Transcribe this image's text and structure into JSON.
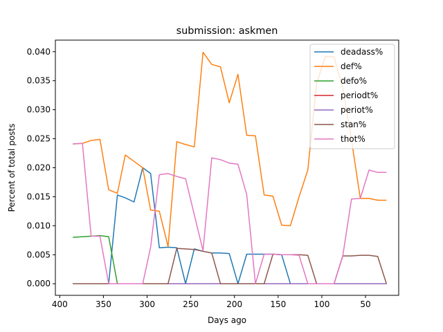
{
  "chart_data": {
    "type": "line",
    "title": "submission: askmen",
    "xlabel": "Days ago",
    "ylabel": "Percent of total posts",
    "xlim": [
      405,
      12
    ],
    "ylim": [
      -0.002,
      0.042
    ],
    "x_inverted": true,
    "grid": false,
    "legend_position": "top-right",
    "x_ticks": [
      400,
      350,
      300,
      250,
      200,
      150,
      100,
      50
    ],
    "x_tick_labels": [
      "400",
      "350",
      "300",
      "250",
      "200",
      "150",
      "100",
      "50"
    ],
    "y_ticks": [
      0.0,
      0.005,
      0.01,
      0.015,
      0.02,
      0.025,
      0.03,
      0.035,
      0.04
    ],
    "y_tick_labels": [
      "0.000",
      "0.005",
      "0.010",
      "0.015",
      "0.020",
      "0.025",
      "0.030",
      "0.035",
      "0.040"
    ],
    "x": [
      385,
      374,
      364,
      354,
      344,
      334,
      325,
      315,
      305,
      296,
      286,
      276,
      266,
      256,
      246,
      236,
      226,
      216,
      206,
      196,
      186,
      176,
      166,
      156,
      146,
      136,
      126,
      116,
      106,
      96,
      86,
      76,
      66,
      56,
      46,
      36,
      26
    ],
    "series": [
      {
        "name": "deadass%",
        "color": "#1f77b4",
        "values": [
          0,
          0,
          0,
          0,
          0,
          0.0153,
          0.0148,
          0.0141,
          0.02,
          0.019,
          0.0062,
          0.0063,
          0.0062,
          0,
          0.006,
          0.0056,
          0.0053,
          0.0053,
          0.0052,
          0,
          0.0051,
          0.0051,
          0.0051,
          0.0051,
          0.005,
          0,
          0,
          0,
          0,
          0,
          0,
          0,
          0,
          0,
          0,
          0,
          0
        ]
      },
      {
        "name": "def%",
        "color": "#ff7f0e",
        "values": [
          0.0241,
          0.0242,
          0.0247,
          0.0249,
          0.0162,
          0.0156,
          0.0222,
          0.0211,
          0.02,
          0.0127,
          0.0125,
          0.0064,
          0.0245,
          0.024,
          0.0236,
          0.0399,
          0.0378,
          0.0374,
          0.0312,
          0.0361,
          0.0256,
          0.0255,
          0.0153,
          0.0151,
          0.0101,
          0.01,
          0.015,
          0.0196,
          0.0345,
          0.0392,
          0.0391,
          0.0338,
          0.0248,
          0.0147,
          0.0147,
          0.0144,
          0.0144
        ]
      },
      {
        "name": "defo%",
        "color": "#2ca02c",
        "values": [
          0.008,
          0.0081,
          0.0082,
          0.0083,
          0.0081,
          0,
          0,
          0,
          0,
          0,
          0,
          0,
          0,
          0,
          0,
          0,
          0,
          0,
          0,
          0,
          0,
          0,
          0,
          0,
          0,
          0,
          0,
          0,
          0,
          0,
          0,
          0,
          0,
          0,
          0,
          0,
          0
        ]
      },
      {
        "name": "periodt%",
        "color": "#d62728",
        "values": [
          0,
          0,
          0,
          0,
          0,
          0,
          0,
          0,
          0,
          0,
          0,
          0,
          0,
          0,
          0,
          0,
          0,
          0,
          0,
          0,
          0,
          0,
          0,
          0,
          0,
          0,
          0,
          0,
          0,
          0,
          0,
          0,
          0,
          0,
          0,
          0,
          0
        ]
      },
      {
        "name": "periot%",
        "color": "#9467bd",
        "values": [
          0,
          0,
          0,
          0,
          0,
          0,
          0,
          0,
          0,
          0,
          0,
          0,
          0,
          0,
          0,
          0,
          0,
          0,
          0,
          0,
          0,
          0,
          0,
          0,
          0,
          0,
          0,
          0,
          0,
          0,
          0,
          0,
          0,
          0,
          0,
          0,
          0
        ]
      },
      {
        "name": "stan%",
        "color": "#8c564b",
        "values": [
          0,
          0,
          0,
          0,
          0,
          0,
          0,
          0,
          0,
          0,
          0,
          0,
          0.0061,
          0.006,
          0.0059,
          0.0056,
          0.0053,
          0,
          0,
          0,
          0,
          0,
          0,
          0.0051,
          0.005,
          0.005,
          0.005,
          0.0049,
          0,
          0,
          0,
          0.0048,
          0.0048,
          0.0049,
          0.0049,
          0.0047,
          0
        ]
      },
      {
        "name": "thot%",
        "color": "#e377c2",
        "values": [
          0.0241,
          0.0242,
          0.0082,
          0.0082,
          0,
          0,
          0,
          0,
          0,
          0.0063,
          0.0188,
          0.019,
          0.0185,
          0.0181,
          0.0119,
          0.0057,
          0.0217,
          0.0214,
          0.0208,
          0.0206,
          0.0154,
          0,
          0.0051,
          0.0051,
          0.005,
          0.005,
          0.0049,
          0,
          0,
          0,
          0,
          0.0048,
          0.0146,
          0.0147,
          0.0196,
          0.0192,
          0.0192
        ]
      }
    ]
  }
}
